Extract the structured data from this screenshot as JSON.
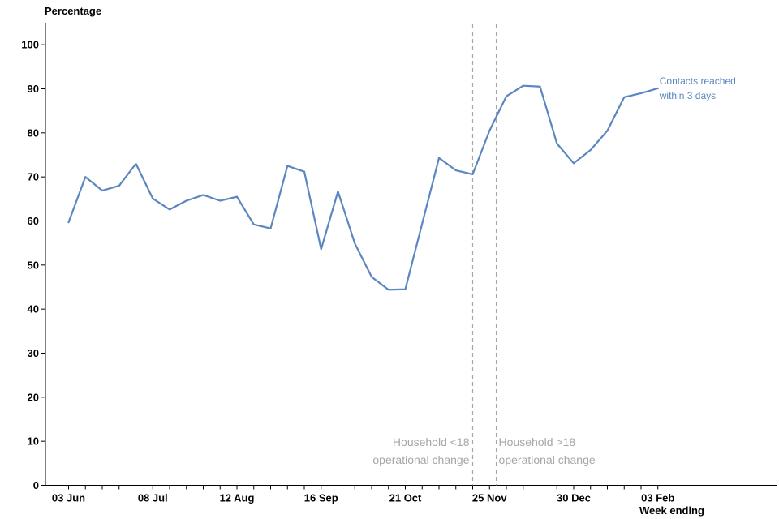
{
  "chart_data": {
    "type": "line",
    "ylabel": "Percentage",
    "xlabel": "Week ending",
    "ylim": [
      0,
      105
    ],
    "yticks": [
      0,
      10,
      20,
      30,
      40,
      50,
      60,
      70,
      80,
      90,
      100
    ],
    "x_tick_labels": [
      {
        "index": 0,
        "label": "03 Jun"
      },
      {
        "index": 5,
        "label": "08 Jul"
      },
      {
        "index": 10,
        "label": "12 Aug"
      },
      {
        "index": 15,
        "label": "16 Sep"
      },
      {
        "index": 20,
        "label": "21 Oct"
      },
      {
        "index": 25,
        "label": "25 Nov"
      },
      {
        "index": 30,
        "label": "30 Dec"
      },
      {
        "index": 35,
        "label": "03 Feb"
      }
    ],
    "series": [
      {
        "name": "Contacts reached within 3 days",
        "label_lines": [
          "Contacts reached",
          "within 3 days"
        ],
        "color": "#5b86bf",
        "values": [
          59.7,
          70.0,
          66.9,
          68.0,
          73.0,
          65.1,
          62.6,
          64.6,
          65.9,
          64.6,
          65.5,
          59.2,
          58.3,
          72.5,
          71.2,
          53.6,
          66.7,
          54.9,
          47.3,
          44.4,
          44.5,
          59.4,
          74.3,
          71.5,
          70.6,
          80.5,
          88.3,
          90.7,
          90.5,
          77.6,
          73.1,
          76.1,
          80.5,
          88.1,
          89.0,
          90.1
        ]
      }
    ],
    "annotations": [
      {
        "position": 24,
        "lines": [
          "Household <18",
          "operational change"
        ],
        "align": "left-of-line"
      },
      {
        "position": 25.4,
        "lines": [
          "Household >18",
          "operational change"
        ],
        "align": "right-of-line"
      }
    ],
    "grid": false,
    "color_annotation": "#a6a6a6",
    "color_axis": "#000000"
  }
}
